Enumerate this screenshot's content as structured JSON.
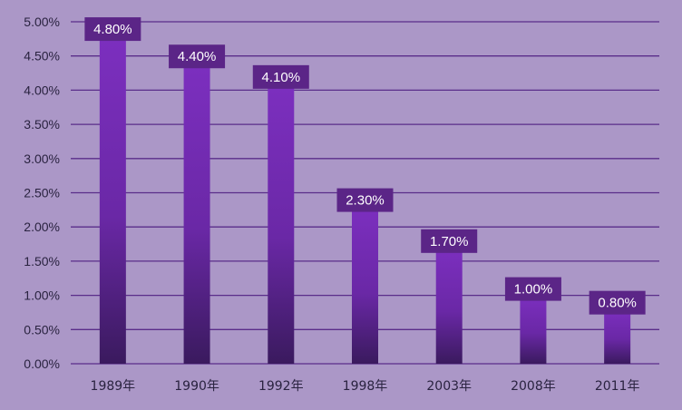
{
  "chart_data": {
    "type": "bar",
    "title": "",
    "xlabel": "",
    "ylabel": "",
    "categories": [
      "1989年",
      "1990年",
      "1992年",
      "1998年",
      "2003年",
      "2008年",
      "2011年"
    ],
    "values": [
      4.8,
      4.4,
      4.1,
      2.3,
      1.7,
      1.0,
      0.8
    ],
    "data_labels": [
      "4.80%",
      "4.40%",
      "4.10%",
      "2.30%",
      "1.70%",
      "1.00%",
      "0.80%"
    ],
    "ylim": [
      0,
      5.0
    ],
    "yticks": [
      0,
      0.5,
      1.0,
      1.5,
      2.0,
      2.5,
      3.0,
      3.5,
      4.0,
      4.5,
      5.0
    ],
    "ytick_labels": [
      "0.00%",
      "0.50%",
      "1.00%",
      "1.50%",
      "2.00%",
      "2.50%",
      "3.00%",
      "3.50%",
      "4.00%",
      "4.50%",
      "5.00%"
    ],
    "grid": true,
    "legend": "none",
    "colors": {
      "background": "#ab97c7",
      "gridline": "#5a2d8a",
      "bar_top": "#7c2fbf",
      "bar_bottom": "#3a1a5e",
      "label_box": "#5b2587",
      "text": "#2a2340"
    }
  }
}
